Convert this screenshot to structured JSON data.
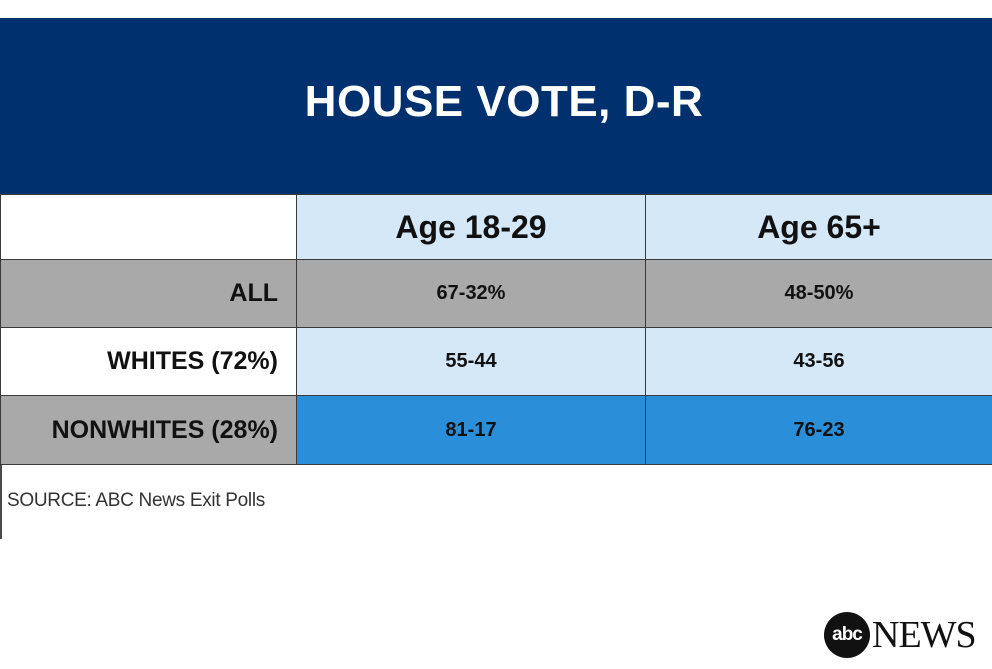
{
  "chart_data": {
    "type": "table",
    "title": "HOUSE VOTE, D-R",
    "columns": [
      "Age 18-29",
      "Age 65+"
    ],
    "rows": [
      {
        "label": "ALL",
        "values": [
          "67-32%",
          "48-50%"
        ]
      },
      {
        "label": "WHITES (72%)",
        "values": [
          "55-44",
          "43-56"
        ]
      },
      {
        "label": "NONWHITES (28%)",
        "values": [
          "81-17",
          "76-23"
        ]
      }
    ],
    "colors": {
      "title_bg": "#00306e",
      "header_bg": "#d4e8f8",
      "row_all_bg": "#a9a9a9",
      "row_whites_bg": "#d4e8f8",
      "row_nonwhites_bg": "#2b8ed9"
    }
  },
  "source": "SOURCE: ABC News Exit Polls",
  "logo": {
    "mark": "abc",
    "word": "NEWS"
  }
}
